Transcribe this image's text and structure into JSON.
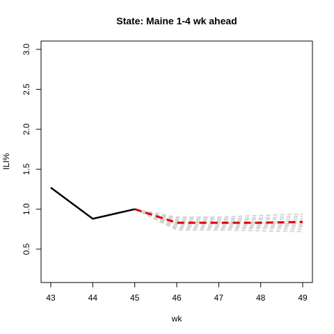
{
  "chart_data": {
    "type": "line",
    "title": "State: Maine 1-4 wk ahead",
    "xlabel": "wk",
    "ylabel": "ILI%",
    "xlim": [
      43,
      49
    ],
    "ylim": [
      0.05,
      3.1
    ],
    "x_ticks": [
      "43",
      "44",
      "45",
      "46",
      "47",
      "48",
      "49"
    ],
    "y_ticks": [
      "0.5",
      "1.0",
      "1.5",
      "2.0",
      "2.5",
      "3.0"
    ],
    "grid": false,
    "legend": "none",
    "observed": {
      "x": [
        43,
        44,
        45
      ],
      "y": [
        1.27,
        0.88,
        1.0
      ],
      "color": "#000000"
    },
    "forecast_mean": {
      "x": [
        45,
        46,
        47,
        48,
        49
      ],
      "y": [
        1.0,
        0.83,
        0.83,
        0.83,
        0.84
      ],
      "color": "#dd0000"
    },
    "ensemble": {
      "color": "#d3d3d3",
      "x": [
        45,
        46,
        47,
        48,
        49
      ],
      "members": [
        [
          1.0,
          0.74,
          0.74,
          0.73,
          0.72
        ],
        [
          1.0,
          0.76,
          0.76,
          0.76,
          0.75
        ],
        [
          1.0,
          0.78,
          0.78,
          0.78,
          0.78
        ],
        [
          1.0,
          0.8,
          0.8,
          0.8,
          0.8
        ],
        [
          1.0,
          0.82,
          0.82,
          0.82,
          0.82
        ],
        [
          1.0,
          0.84,
          0.84,
          0.84,
          0.85
        ],
        [
          1.0,
          0.86,
          0.86,
          0.87,
          0.88
        ],
        [
          1.0,
          0.88,
          0.88,
          0.89,
          0.91
        ],
        [
          1.0,
          0.9,
          0.9,
          0.92,
          0.94
        ]
      ]
    }
  }
}
